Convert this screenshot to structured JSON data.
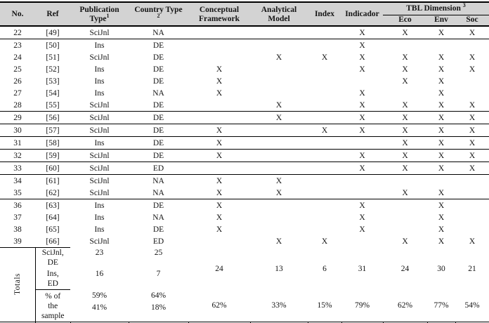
{
  "colors": {
    "header_bg": "#d3d3d3",
    "border": "#000000",
    "text": "#141414"
  },
  "table": {
    "header": {
      "no": "No.",
      "ref": "Ref",
      "pub_l1": "Publication",
      "pub_l2": "Type",
      "pub_sup": "1",
      "country_l1": "Country Type",
      "country_sup": "2",
      "cf_l1": "Conceptual",
      "cf_l2": "Framework",
      "am_l1": "Analytical",
      "am_l2": "Model",
      "index": "Index",
      "indicador": "Indicador",
      "tbl": "TBL Dimension",
      "tbl_sup": "3",
      "eco": "Eco",
      "env": "Env",
      "soc": "Soc"
    },
    "rows": [
      {
        "no": "22",
        "ref": "[49]",
        "pub": "SciJnl",
        "country": "NA",
        "cf": "",
        "am": "",
        "index": "",
        "ind": "X",
        "eco": "X",
        "env": "X",
        "soc": "X",
        "sep": true
      },
      {
        "no": "23",
        "ref": "[50]",
        "pub": "Ins",
        "country": "DE",
        "cf": "",
        "am": "",
        "index": "",
        "ind": "X",
        "eco": "",
        "env": "",
        "soc": "",
        "sep": false
      },
      {
        "no": "24",
        "ref": "[51]",
        "pub": "SciJnl",
        "country": "DE",
        "cf": "",
        "am": "X",
        "index": "X",
        "ind": "X",
        "eco": "X",
        "env": "X",
        "soc": "X",
        "sep": false
      },
      {
        "no": "25",
        "ref": "[52]",
        "pub": "Ins",
        "country": "DE",
        "cf": "X",
        "am": "",
        "index": "",
        "ind": "X",
        "eco": "X",
        "env": "X",
        "soc": "X",
        "sep": false
      },
      {
        "no": "26",
        "ref": "[53]",
        "pub": "Ins",
        "country": "DE",
        "cf": "X",
        "am": "",
        "index": "",
        "ind": "",
        "eco": "X",
        "env": "X",
        "soc": "",
        "sep": false
      },
      {
        "no": "27",
        "ref": "[54]",
        "pub": "Ins",
        "country": "NA",
        "cf": "X",
        "am": "",
        "index": "",
        "ind": "X",
        "eco": "",
        "env": "X",
        "soc": "",
        "sep": false
      },
      {
        "no": "28",
        "ref": "[55]",
        "pub": "SciJnl",
        "country": "DE",
        "cf": "",
        "am": "X",
        "index": "",
        "ind": "X",
        "eco": "X",
        "env": "X",
        "soc": "X",
        "sep": true
      },
      {
        "no": "29",
        "ref": "[56]",
        "pub": "SciJnl",
        "country": "DE",
        "cf": "",
        "am": "X",
        "index": "",
        "ind": "X",
        "eco": "X",
        "env": "X",
        "soc": "X",
        "sep": true
      },
      {
        "no": "30",
        "ref": "[57]",
        "pub": "SciJnl",
        "country": "DE",
        "cf": "X",
        "am": "",
        "index": "X",
        "ind": "X",
        "eco": "X",
        "env": "X",
        "soc": "X",
        "sep": true
      },
      {
        "no": "31",
        "ref": "[58]",
        "pub": "Ins",
        "country": "DE",
        "cf": "X",
        "am": "",
        "index": "",
        "ind": "",
        "eco": "X",
        "env": "X",
        "soc": "X",
        "sep": true
      },
      {
        "no": "32",
        "ref": "[59]",
        "pub": "SciJnl",
        "country": "DE",
        "cf": "X",
        "am": "",
        "index": "",
        "ind": "X",
        "eco": "X",
        "env": "X",
        "soc": "X",
        "sep": true
      },
      {
        "no": "33",
        "ref": "[60]",
        "pub": "SciJnl",
        "country": "ED",
        "cf": "",
        "am": "",
        "index": "",
        "ind": "X",
        "eco": "X",
        "env": "X",
        "soc": "X",
        "sep": true
      },
      {
        "no": "34",
        "ref": "[61]",
        "pub": "SciJnl",
        "country": "NA",
        "cf": "X",
        "am": "X",
        "index": "",
        "ind": "",
        "eco": "",
        "env": "",
        "soc": "",
        "sep": false
      },
      {
        "no": "35",
        "ref": "[62]",
        "pub": "SciJnl",
        "country": "NA",
        "cf": "X",
        "am": "X",
        "index": "",
        "ind": "",
        "eco": "X",
        "env": "X",
        "soc": "",
        "sep": true
      },
      {
        "no": "36",
        "ref": "[63]",
        "pub": "Ins",
        "country": "DE",
        "cf": "X",
        "am": "",
        "index": "",
        "ind": "X",
        "eco": "",
        "env": "X",
        "soc": "",
        "sep": false
      },
      {
        "no": "37",
        "ref": "[64]",
        "pub": "Ins",
        "country": "NA",
        "cf": "X",
        "am": "",
        "index": "",
        "ind": "X",
        "eco": "",
        "env": "X",
        "soc": "",
        "sep": false
      },
      {
        "no": "38",
        "ref": "[65]",
        "pub": "Ins",
        "country": "DE",
        "cf": "X",
        "am": "",
        "index": "",
        "ind": "X",
        "eco": "",
        "env": "X",
        "soc": "",
        "sep": false
      },
      {
        "no": "39",
        "ref": "[66]",
        "pub": "SciJnl",
        "country": "ED",
        "cf": "",
        "am": "X",
        "index": "X",
        "ind": "",
        "eco": "X",
        "env": "X",
        "soc": "X",
        "sep": false
      }
    ],
    "totals": {
      "label": "Totals",
      "count_label_1": {
        "l1": "SciJnl,",
        "l2": "DE"
      },
      "count_label_2": {
        "l1": "Ins,",
        "l2": "ED"
      },
      "counts_row1": {
        "pub": "23",
        "country": "25"
      },
      "counts_row2": {
        "pub": "16",
        "country": "7"
      },
      "counts_center": {
        "cf": "24",
        "am": "13",
        "index": "6",
        "ind": "31",
        "eco": "24",
        "env": "30",
        "soc": "21"
      },
      "pct_label": {
        "l1": "% of",
        "l2": "the",
        "l3": "sample"
      },
      "pct_row1": {
        "pub": "59%",
        "country": "64%"
      },
      "pct_row2": {
        "pub": "41%",
        "country": "18%"
      },
      "pct_center": {
        "cf": "62%",
        "am": "33%",
        "index": "15%",
        "ind": "79%",
        "eco": "62%",
        "env": "77%",
        "soc": "54%"
      }
    }
  }
}
